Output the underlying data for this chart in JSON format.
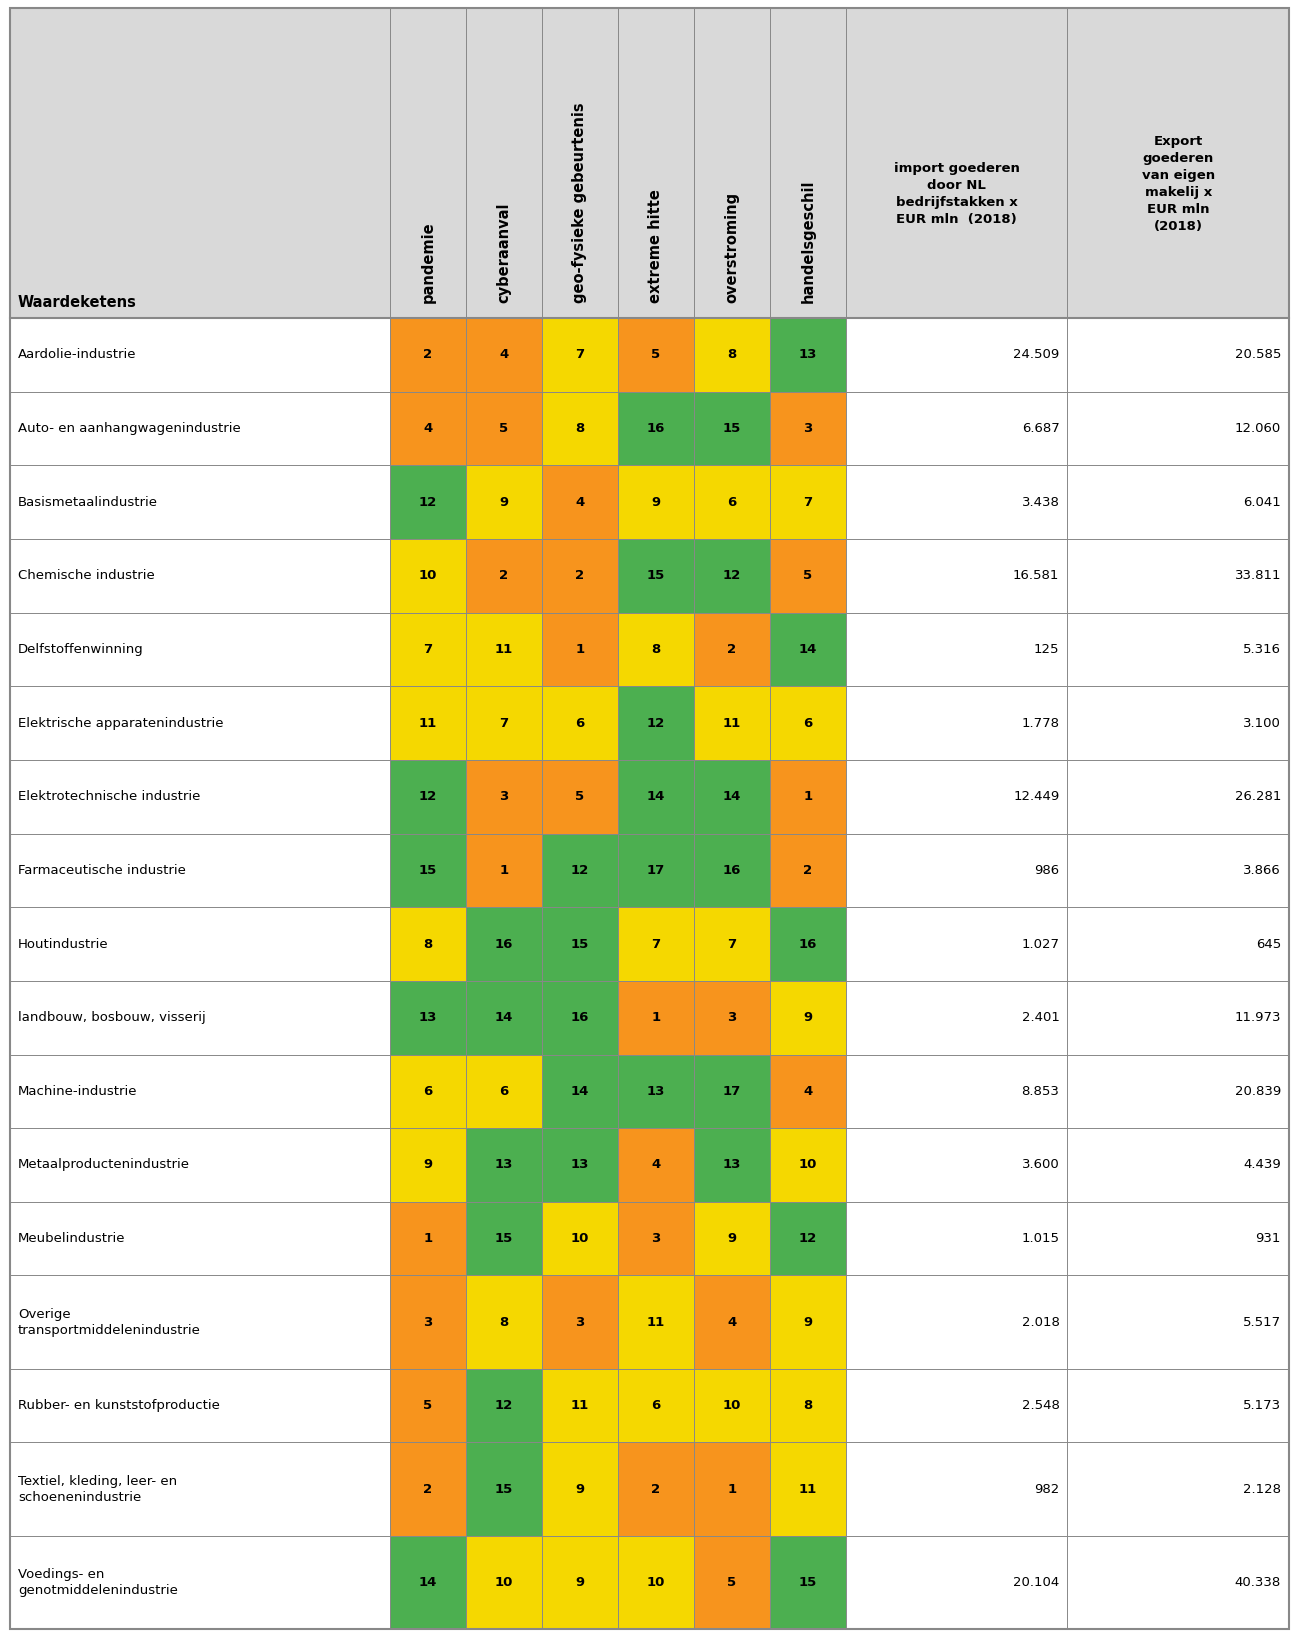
{
  "col_headers_rotated": [
    "pandemie",
    "cyberaanval",
    "geo-fysieke gebeurtenis",
    "extreme hitte",
    "overstroming",
    "handelsgeschil"
  ],
  "col_headers_normal_1": "import goederen\ndoor NL\nbedrijfstakken x\nEUR mln  (2018)",
  "col_headers_normal_2": "Export\ngoederen\nvan eigen\nmakelij x\nEUR mln\n(2018)",
  "row_label_header": "Waardeketens",
  "rows": [
    {
      "label": "Aardolie-industrie",
      "vals": [
        2,
        4,
        7,
        5,
        8,
        13
      ],
      "import": "24.509",
      "export": "20.585",
      "tall": false
    },
    {
      "label": "Auto- en aanhangwagenindustrie",
      "vals": [
        4,
        5,
        8,
        16,
        15,
        3
      ],
      "import": "6.687",
      "export": "12.060",
      "tall": false
    },
    {
      "label": "Basismetaalindustrie",
      "vals": [
        12,
        9,
        4,
        9,
        6,
        7
      ],
      "import": "3.438",
      "export": "6.041",
      "tall": false
    },
    {
      "label": "Chemische industrie",
      "vals": [
        10,
        2,
        2,
        15,
        12,
        5
      ],
      "import": "16.581",
      "export": "33.811",
      "tall": false
    },
    {
      "label": "Delfstoffenwinning",
      "vals": [
        7,
        11,
        1,
        8,
        2,
        14
      ],
      "import": "125",
      "export": "5.316",
      "tall": false
    },
    {
      "label": "Elektrische apparatenindustrie",
      "vals": [
        11,
        7,
        6,
        12,
        11,
        6
      ],
      "import": "1.778",
      "export": "3.100",
      "tall": false
    },
    {
      "label": "Elektrotechnische industrie",
      "vals": [
        12,
        3,
        5,
        14,
        14,
        1
      ],
      "import": "12.449",
      "export": "26.281",
      "tall": false
    },
    {
      "label": "Farmaceutische industrie",
      "vals": [
        15,
        1,
        12,
        17,
        16,
        2
      ],
      "import": "986",
      "export": "3.866",
      "tall": false
    },
    {
      "label": "Houtindustrie",
      "vals": [
        8,
        16,
        15,
        7,
        7,
        16
      ],
      "import": "1.027",
      "export": "645",
      "tall": false
    },
    {
      "label": "landbouw, bosbouw, visserij",
      "vals": [
        13,
        14,
        16,
        1,
        3,
        9
      ],
      "import": "2.401",
      "export": "11.973",
      "tall": false
    },
    {
      "label": "Machine-industrie",
      "vals": [
        6,
        6,
        14,
        13,
        17,
        4
      ],
      "import": "8.853",
      "export": "20.839",
      "tall": false
    },
    {
      "label": "Metaalproductenindustrie",
      "vals": [
        9,
        13,
        13,
        4,
        13,
        10
      ],
      "import": "3.600",
      "export": "4.439",
      "tall": false
    },
    {
      "label": "Meubelindustrie",
      "vals": [
        1,
        15,
        10,
        3,
        9,
        12
      ],
      "import": "1.015",
      "export": "931",
      "tall": false
    },
    {
      "label": "Overige\ntransportmiddelenindustrie",
      "vals": [
        3,
        8,
        3,
        11,
        4,
        9
      ],
      "import": "2.018",
      "export": "5.517",
      "tall": true
    },
    {
      "label": "Rubber- en kunststofproductie",
      "vals": [
        5,
        12,
        11,
        6,
        10,
        8
      ],
      "import": "2.548",
      "export": "5.173",
      "tall": false
    },
    {
      "label": "Textiel, kleding, leer- en\nschoenenindustrie",
      "vals": [
        2,
        15,
        9,
        2,
        1,
        11
      ],
      "import": "982",
      "export": "2.128",
      "tall": true
    },
    {
      "label": "Voedings- en\ngenotmiddelenindustrie",
      "vals": [
        14,
        10,
        9,
        10,
        5,
        15
      ],
      "import": "20.104",
      "export": "40.338",
      "tall": true
    }
  ],
  "colors": {
    "orange": "#F7941D",
    "yellow": "#F5D800",
    "green": "#4CAF50",
    "header_bg": "#D9D9D9",
    "border": "#999999"
  }
}
